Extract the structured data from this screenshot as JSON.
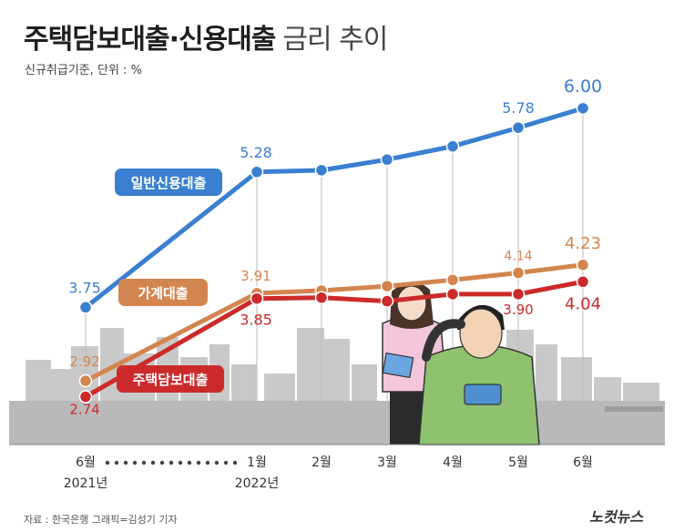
{
  "title": "주택담보대출·신용대출",
  "title_suffix": "금리 추이",
  "subtitle": "신규취급기준, 단위 : %",
  "footer": {
    "source": "자료 : 한국은행    그래픽=김성기 기자",
    "logo": "노컷뉴스"
  },
  "colors": {
    "credit": "#3a7fd0",
    "household": "#d3854f",
    "mortgage": "#cc2a2a",
    "buildings": "#c9c9c9",
    "grid": "#bbbbbb"
  },
  "chart_data": {
    "type": "line",
    "categories": [
      "6월",
      "1월",
      "2월",
      "3월",
      "4월",
      "5월",
      "6월"
    ],
    "year_labels": [
      "2021년",
      "2022년"
    ],
    "ylim": [
      2.2,
      6.4
    ],
    "series": [
      {
        "name": "일반신용대출",
        "color_key": "credit",
        "values": [
          3.75,
          5.28,
          5.3,
          5.42,
          5.57,
          5.78,
          6.0
        ],
        "labels": [
          "3.75",
          "5.28",
          "",
          "",
          "",
          "5.78",
          "6.00"
        ]
      },
      {
        "name": "가계대출",
        "color_key": "household",
        "values": [
          2.92,
          3.91,
          3.94,
          3.99,
          4.06,
          4.14,
          4.23
        ],
        "labels": [
          "2.92",
          "3.91",
          "",
          "",
          "",
          "4.14",
          "4.23"
        ]
      },
      {
        "name": "주택담보대출",
        "color_key": "mortgage",
        "values": [
          2.74,
          3.85,
          3.86,
          3.82,
          3.9,
          3.9,
          4.04
        ],
        "labels": [
          "2.74",
          "3.85",
          "",
          "",
          "",
          "3.90",
          "4.04"
        ]
      }
    ]
  }
}
